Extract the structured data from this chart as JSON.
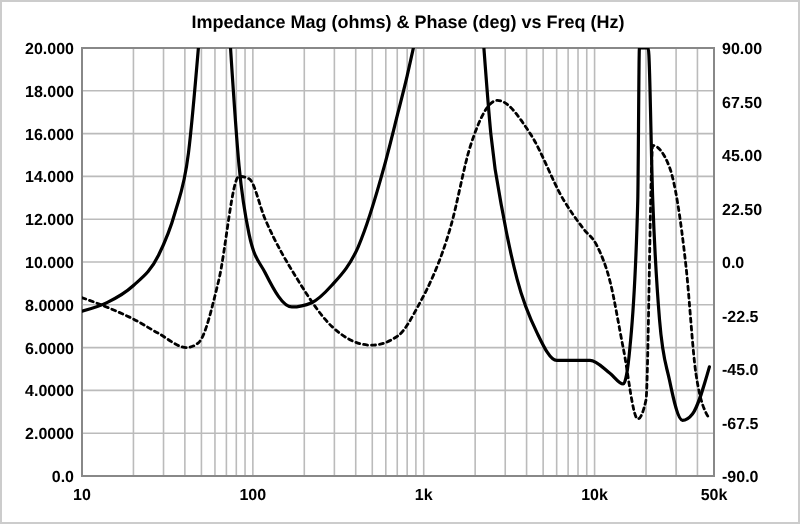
{
  "chart_data": {
    "type": "line",
    "title": "Impedance Mag (ohms) & Phase (deg) vs Freq (Hz)",
    "log": "x",
    "grid": true,
    "xlim": [
      10,
      50000
    ],
    "xticks": [
      {
        "value": 10,
        "label": "10"
      },
      {
        "value": 20,
        "label": null
      },
      {
        "value": 30,
        "label": null
      },
      {
        "value": 40,
        "label": null
      },
      {
        "value": 50,
        "label": null
      },
      {
        "value": 60,
        "label": null
      },
      {
        "value": 70,
        "label": null
      },
      {
        "value": 80,
        "label": null
      },
      {
        "value": 90,
        "label": null
      },
      {
        "value": 100,
        "label": "100"
      },
      {
        "value": 200,
        "label": null
      },
      {
        "value": 300,
        "label": null
      },
      {
        "value": 400,
        "label": null
      },
      {
        "value": 500,
        "label": null
      },
      {
        "value": 600,
        "label": null
      },
      {
        "value": 700,
        "label": null
      },
      {
        "value": 800,
        "label": null
      },
      {
        "value": 900,
        "label": null
      },
      {
        "value": 1000,
        "label": "1k"
      },
      {
        "value": 2000,
        "label": null
      },
      {
        "value": 3000,
        "label": null
      },
      {
        "value": 4000,
        "label": null
      },
      {
        "value": 5000,
        "label": null
      },
      {
        "value": 6000,
        "label": null
      },
      {
        "value": 7000,
        "label": null
      },
      {
        "value": 8000,
        "label": null
      },
      {
        "value": 9000,
        "label": null
      },
      {
        "value": 10000,
        "label": "10k"
      },
      {
        "value": 20000,
        "label": null
      },
      {
        "value": 30000,
        "label": null
      },
      {
        "value": 40000,
        "label": null
      },
      {
        "value": 50000,
        "label": "50k"
      }
    ],
    "ylim": [
      0,
      20
    ],
    "yticks": [
      {
        "value": 0,
        "label": "0.0"
      },
      {
        "value": 2,
        "label": "2.0000"
      },
      {
        "value": 4,
        "label": "4.0000"
      },
      {
        "value": 6,
        "label": "6.0000"
      },
      {
        "value": 8,
        "label": "8.0000"
      },
      {
        "value": 10,
        "label": "10.000"
      },
      {
        "value": 12,
        "label": "12.000"
      },
      {
        "value": 14,
        "label": "14.000"
      },
      {
        "value": 16,
        "label": "16.000"
      },
      {
        "value": 18,
        "label": "18.000"
      },
      {
        "value": 20,
        "label": "20.000"
      }
    ],
    "y2lim": [
      -90,
      90
    ],
    "y2ticks": [
      {
        "value": -90,
        "label": "-90.0"
      },
      {
        "value": -67.5,
        "label": "-67.5"
      },
      {
        "value": -45,
        "label": "-45.0"
      },
      {
        "value": -22.5,
        "label": "-22.5"
      },
      {
        "value": 0,
        "label": "0.0"
      },
      {
        "value": 22.5,
        "label": "22.50"
      },
      {
        "value": 45,
        "label": "45.00"
      },
      {
        "value": 67.5,
        "label": "67.50"
      },
      {
        "value": 90,
        "label": "90.00"
      }
    ],
    "series": [
      {
        "color": "#000000",
        "line_style": "solid",
        "x": [
          10,
          14,
          20,
          28,
          35,
          42,
          48,
          50,
          74,
          83,
          95,
          118,
          169,
          221,
          289,
          413,
          589,
          708,
          800,
          870,
          1000,
          2250,
          2470,
          2950,
          3520,
          4600,
          6000,
          9400,
          12300,
          14700,
          16100,
          17900,
          18300,
          20600,
          21900,
          24000,
          27400,
          32700,
          37400,
          47000
        ],
        "values": [
          7.7,
          8.1,
          8.9,
          10.3,
          12.3,
          15.1,
          20,
          null,
          20,
          14.5,
          11.3,
          9.5,
          7.9,
          8.1,
          8.9,
          10.7,
          14.5,
          17,
          18.7,
          20,
          null,
          20,
          16,
          12,
          9.2,
          6.7,
          5.4,
          5.4,
          4.8,
          4.3,
          6,
          12.9,
          20,
          20,
          12.9,
          7.3,
          4.5,
          2.6,
          2.9,
          5.1
        ]
      },
      {
        "color": "#000000",
        "line_style": "dotted",
        "axis": "y2",
        "x": [
          10,
          14,
          20,
          28,
          41,
          48,
          63,
          83,
          95,
          118,
          185,
          289,
          494,
          708,
          920,
          1440,
          1880,
          2700,
          4200,
          6600,
          8600,
          10300,
          12300,
          14700,
          17900,
          20000,
          21900,
          27400,
          34300,
          39200,
          47000
        ],
        "values": [
          -15,
          -19,
          -24,
          -30,
          -36,
          -34,
          -8,
          36,
          35,
          18,
          -8,
          -27,
          -35,
          -31,
          -19,
          15,
          49,
          68,
          54,
          26,
          14,
          7,
          -8,
          -36,
          -66,
          -58,
          49,
          40,
          -2,
          -47,
          -66
        ]
      }
    ]
  }
}
